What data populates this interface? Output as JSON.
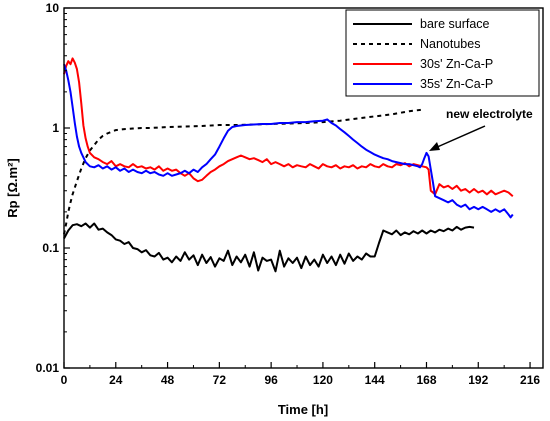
{
  "chart_data": {
    "type": "line",
    "xlabel": "Time [h]",
    "ylabel": "Rp [Ω.m²]",
    "xlim": [
      0,
      222
    ],
    "ylim": [
      0.01,
      10
    ],
    "yscale": "log",
    "x_ticks": [
      0,
      24,
      48,
      72,
      96,
      120,
      144,
      168,
      192,
      216
    ],
    "x_tick_labels": [
      "0",
      "24",
      "48",
      "72",
      "96",
      "120",
      "144",
      "168",
      "192",
      "216"
    ],
    "y_ticks": [
      0.01,
      0.1,
      1,
      10
    ],
    "y_tick_labels": [
      "0.01",
      "0.1",
      "1",
      "10"
    ],
    "grid": false,
    "legend_position": "top-right",
    "annotations": [
      {
        "text": "new electrolyte",
        "points_to": {
          "x": 168,
          "y": 0.55
        }
      }
    ],
    "series": [
      {
        "name": "bare surface",
        "color": "#000000",
        "style": "solid",
        "x": [
          0,
          2,
          4,
          6,
          8,
          10,
          12,
          14,
          16,
          18,
          20,
          22,
          24,
          26,
          28,
          30,
          32,
          34,
          36,
          38,
          40,
          42,
          44,
          46,
          48,
          50,
          52,
          54,
          56,
          58,
          60,
          62,
          64,
          66,
          68,
          70,
          72,
          74,
          76,
          78,
          80,
          82,
          84,
          86,
          88,
          90,
          92,
          94,
          96,
          98,
          100,
          102,
          104,
          106,
          108,
          110,
          112,
          114,
          116,
          118,
          120,
          122,
          124,
          126,
          128,
          130,
          132,
          134,
          136,
          138,
          140,
          142,
          144,
          146,
          148,
          150,
          152,
          154,
          156,
          158,
          160,
          162,
          164,
          166,
          168,
          170,
          172,
          174,
          176,
          178,
          180,
          182,
          184,
          186,
          188,
          190
        ],
        "y": [
          0.12,
          0.14,
          0.155,
          0.158,
          0.152,
          0.16,
          0.148,
          0.16,
          0.142,
          0.145,
          0.135,
          0.128,
          0.118,
          0.115,
          0.108,
          0.112,
          0.1,
          0.098,
          0.092,
          0.096,
          0.087,
          0.085,
          0.091,
          0.08,
          0.083,
          0.076,
          0.085,
          0.078,
          0.092,
          0.08,
          0.087,
          0.072,
          0.088,
          0.075,
          0.084,
          0.07,
          0.082,
          0.078,
          0.095,
          0.072,
          0.085,
          0.076,
          0.088,
          0.07,
          0.092,
          0.065,
          0.083,
          0.078,
          0.08,
          0.064,
          0.095,
          0.07,
          0.082,
          0.075,
          0.083,
          0.068,
          0.085,
          0.072,
          0.08,
          0.07,
          0.088,
          0.075,
          0.085,
          0.072,
          0.088,
          0.074,
          0.09,
          0.078,
          0.085,
          0.08,
          0.09,
          0.085,
          0.085,
          0.11,
          0.14,
          0.135,
          0.13,
          0.14,
          0.128,
          0.135,
          0.13,
          0.138,
          0.132,
          0.14,
          0.132,
          0.14,
          0.135,
          0.142,
          0.138,
          0.145,
          0.14,
          0.15,
          0.142,
          0.148,
          0.15,
          0.148
        ]
      },
      {
        "name": "Nanotubes",
        "color": "#000000",
        "style": "dashed",
        "x": [
          0,
          1,
          2,
          3,
          4,
          6,
          8,
          10,
          12,
          14,
          16,
          18,
          20,
          24,
          28,
          32,
          36,
          40,
          48,
          56,
          64,
          72,
          80,
          88,
          96,
          104,
          112,
          120,
          128,
          136,
          144,
          152,
          160,
          166
        ],
        "y": [
          0.13,
          0.16,
          0.2,
          0.24,
          0.28,
          0.36,
          0.46,
          0.56,
          0.65,
          0.72,
          0.8,
          0.86,
          0.9,
          0.96,
          0.98,
          0.99,
          1.0,
          1.0,
          1.02,
          1.03,
          1.04,
          1.06,
          1.06,
          1.07,
          1.08,
          1.09,
          1.1,
          1.12,
          1.15,
          1.2,
          1.25,
          1.3,
          1.38,
          1.42
        ]
      },
      {
        "name": "30s' Zn-Ca-P",
        "color": "#ff0000",
        "style": "solid",
        "x": [
          0,
          1,
          2,
          3,
          4,
          5,
          6,
          7,
          8,
          9,
          10,
          11,
          12,
          14,
          16,
          18,
          20,
          22,
          24,
          26,
          28,
          30,
          32,
          34,
          36,
          38,
          40,
          42,
          44,
          46,
          48,
          50,
          52,
          54,
          56,
          58,
          60,
          62,
          64,
          66,
          68,
          70,
          72,
          74,
          76,
          78,
          80,
          82,
          84,
          86,
          88,
          90,
          92,
          94,
          96,
          98,
          100,
          102,
          104,
          106,
          108,
          110,
          112,
          114,
          116,
          118,
          120,
          122,
          124,
          126,
          128,
          130,
          132,
          134,
          136,
          138,
          140,
          142,
          144,
          146,
          148,
          150,
          152,
          154,
          156,
          158,
          160,
          162,
          164,
          166,
          168,
          169,
          170,
          172,
          174,
          176,
          178,
          180,
          182,
          184,
          186,
          188,
          190,
          192,
          194,
          196,
          198,
          200,
          202,
          204,
          206,
          208
        ],
        "y": [
          2.8,
          3.3,
          3.6,
          3.4,
          3.8,
          3.5,
          3.1,
          2.4,
          1.6,
          1.05,
          0.82,
          0.7,
          0.62,
          0.57,
          0.55,
          0.52,
          0.5,
          0.53,
          0.48,
          0.5,
          0.48,
          0.47,
          0.5,
          0.47,
          0.48,
          0.46,
          0.47,
          0.45,
          0.48,
          0.44,
          0.46,
          0.44,
          0.45,
          0.42,
          0.4,
          0.42,
          0.38,
          0.36,
          0.37,
          0.4,
          0.43,
          0.45,
          0.48,
          0.5,
          0.53,
          0.55,
          0.57,
          0.59,
          0.57,
          0.55,
          0.56,
          0.54,
          0.52,
          0.55,
          0.5,
          0.52,
          0.5,
          0.48,
          0.5,
          0.47,
          0.49,
          0.48,
          0.47,
          0.5,
          0.48,
          0.46,
          0.5,
          0.48,
          0.47,
          0.49,
          0.46,
          0.48,
          0.47,
          0.49,
          0.46,
          0.48,
          0.47,
          0.5,
          0.48,
          0.47,
          0.5,
          0.48,
          0.47,
          0.5,
          0.49,
          0.51,
          0.48,
          0.5,
          0.49,
          0.48,
          0.47,
          0.45,
          0.3,
          0.28,
          0.34,
          0.32,
          0.33,
          0.31,
          0.33,
          0.3,
          0.31,
          0.29,
          0.31,
          0.29,
          0.3,
          0.28,
          0.3,
          0.28,
          0.29,
          0.3,
          0.29,
          0.27
        ]
      },
      {
        "name": "35s' Zn-Ca-P",
        "color": "#0000ff",
        "style": "solid",
        "x": [
          0,
          1,
          2,
          3,
          4,
          5,
          6,
          7,
          8,
          10,
          12,
          14,
          16,
          18,
          20,
          22,
          24,
          26,
          28,
          30,
          32,
          34,
          36,
          38,
          40,
          42,
          44,
          46,
          48,
          50,
          52,
          54,
          56,
          58,
          60,
          62,
          64,
          66,
          68,
          70,
          72,
          74,
          76,
          78,
          80,
          84,
          88,
          92,
          96,
          100,
          104,
          108,
          112,
          116,
          120,
          122,
          124,
          126,
          128,
          130,
          132,
          134,
          136,
          138,
          140,
          142,
          144,
          146,
          148,
          150,
          152,
          154,
          156,
          158,
          160,
          162,
          164,
          165,
          166,
          167,
          168,
          169,
          170,
          171,
          172,
          174,
          176,
          178,
          180,
          182,
          184,
          186,
          188,
          190,
          192,
          194,
          196,
          198,
          200,
          202,
          204,
          206,
          207,
          208
        ],
        "y": [
          3.4,
          3.0,
          2.5,
          2.0,
          1.5,
          1.1,
          0.85,
          0.7,
          0.62,
          0.52,
          0.48,
          0.47,
          0.49,
          0.46,
          0.48,
          0.45,
          0.47,
          0.44,
          0.46,
          0.43,
          0.45,
          0.43,
          0.42,
          0.44,
          0.42,
          0.43,
          0.41,
          0.4,
          0.42,
          0.4,
          0.41,
          0.42,
          0.44,
          0.42,
          0.45,
          0.43,
          0.47,
          0.5,
          0.55,
          0.6,
          0.7,
          0.82,
          0.95,
          1.02,
          1.04,
          1.06,
          1.07,
          1.08,
          1.08,
          1.1,
          1.1,
          1.12,
          1.12,
          1.14,
          1.15,
          1.18,
          1.1,
          1.05,
          0.98,
          0.92,
          0.86,
          0.8,
          0.75,
          0.7,
          0.66,
          0.63,
          0.6,
          0.58,
          0.56,
          0.55,
          0.53,
          0.52,
          0.51,
          0.5,
          0.5,
          0.49,
          0.48,
          0.47,
          0.5,
          0.56,
          0.62,
          0.58,
          0.45,
          0.35,
          0.27,
          0.26,
          0.25,
          0.24,
          0.25,
          0.23,
          0.22,
          0.23,
          0.21,
          0.22,
          0.21,
          0.22,
          0.21,
          0.2,
          0.21,
          0.2,
          0.21,
          0.19,
          0.18,
          0.19
        ]
      }
    ]
  }
}
